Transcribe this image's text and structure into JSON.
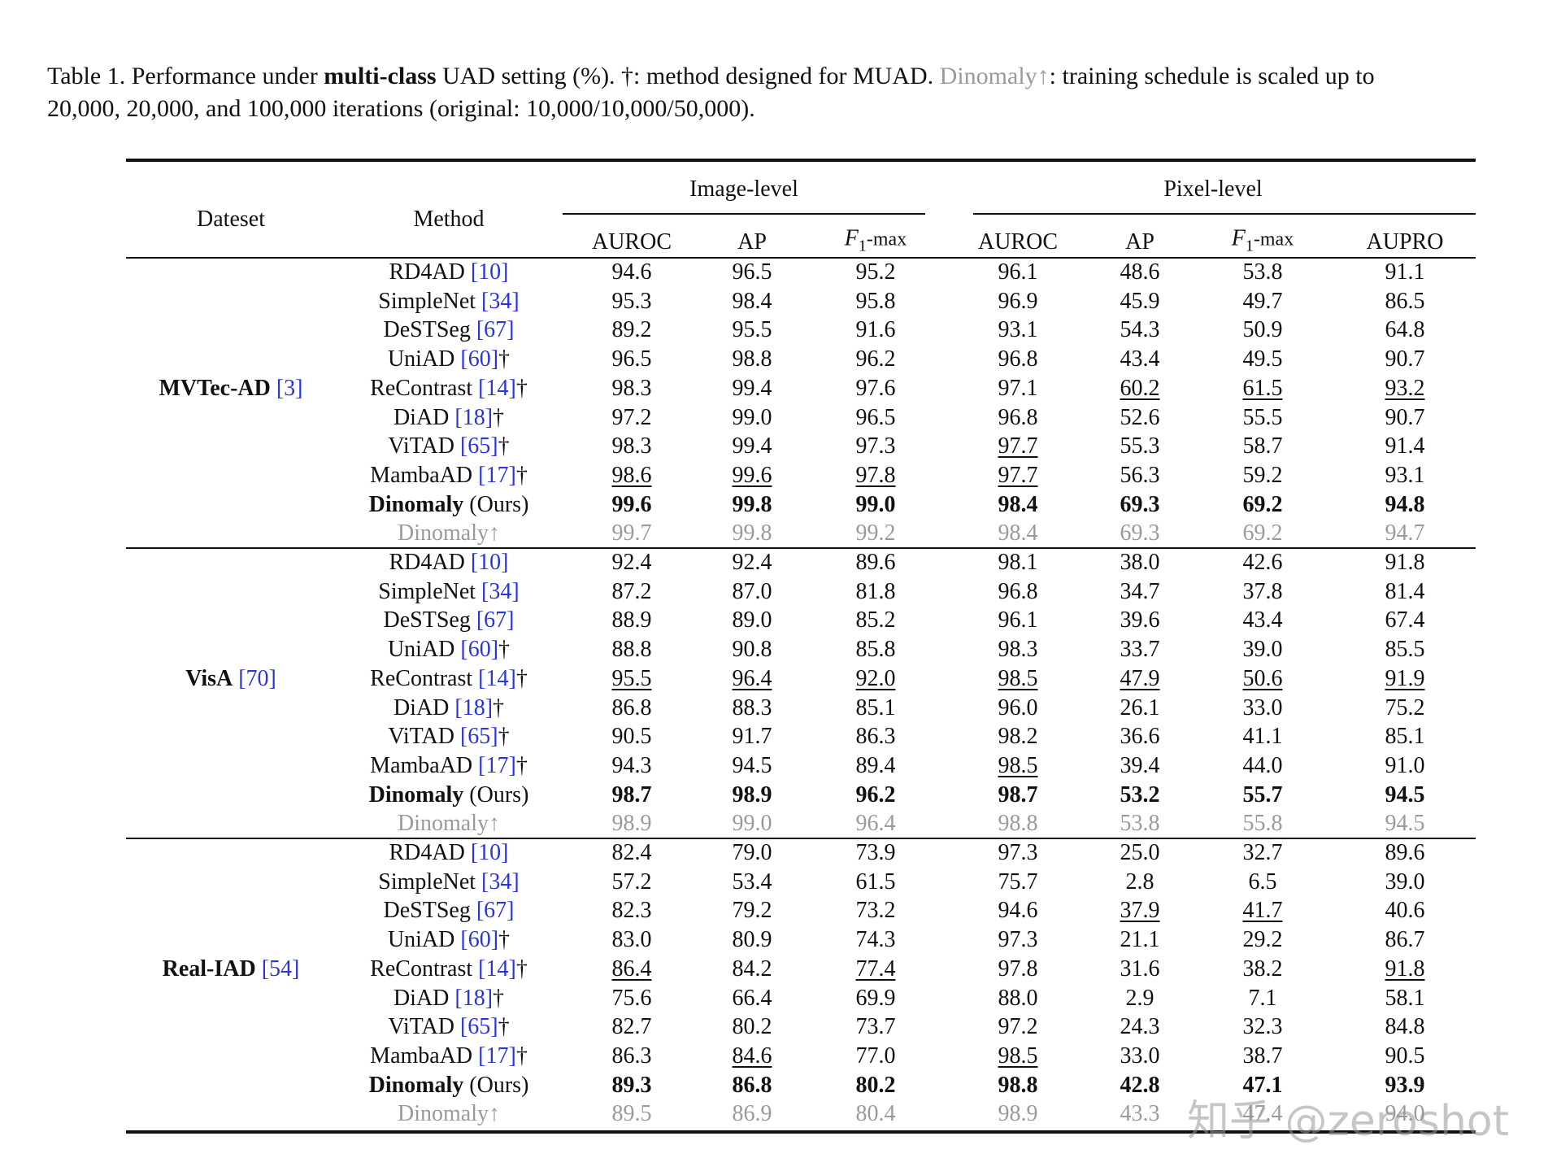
{
  "caption": {
    "lines": [
      [
        {
          "text": "Table 1. Performance under "
        },
        {
          "text": "multi-class",
          "style": "bold"
        },
        {
          "text": " UAD setting (%). †: method designed for MUAD. "
        },
        {
          "text": "Dinomaly↑",
          "style": "gray"
        },
        {
          "text": ": training schedule is scaled up to"
        }
      ],
      [
        {
          "text": "20,000, 20,000, and 100,000 iterations (original: 10,000/10,000/50,000)."
        }
      ]
    ]
  },
  "table": {
    "headers": {
      "dataset": "Dateset",
      "method": "Method",
      "groups": [
        "Image-level",
        "Pixel-level"
      ],
      "columns": [
        {
          "label": "AUROC"
        },
        {
          "label": "AP"
        },
        {
          "label": "F",
          "sub": "1",
          "suffix": "-max"
        },
        {
          "label": "AUROC"
        },
        {
          "label": "AP"
        },
        {
          "label": "F",
          "sub": "1",
          "suffix": "-max"
        },
        {
          "label": "AUPRO"
        }
      ]
    },
    "blocks": [
      {
        "dataset": "MVTec-AD",
        "ref": "[3]",
        "rows": [
          {
            "name": "RD4AD",
            "ref": "[10]",
            "values": [
              "94.6",
              "96.5",
              "95.2",
              "96.1",
              "48.6",
              "53.8",
              "91.1"
            ]
          },
          {
            "name": "SimpleNet",
            "ref": "[34]",
            "values": [
              "95.3",
              "98.4",
              "95.8",
              "96.9",
              "45.9",
              "49.7",
              "86.5"
            ]
          },
          {
            "name": "DeSTSeg",
            "ref": "[67]",
            "values": [
              "89.2",
              "95.5",
              "91.6",
              "93.1",
              "54.3",
              "50.9",
              "64.8"
            ]
          },
          {
            "name": "UniAD",
            "ref": "[60]",
            "mark": "†",
            "values": [
              "96.5",
              "98.8",
              "96.2",
              "96.8",
              "43.4",
              "49.5",
              "90.7"
            ]
          },
          {
            "name": "ReContrast",
            "ref": "[14]",
            "mark": "†",
            "values": [
              "98.3",
              "99.4",
              "97.6",
              "97.1",
              "60.2",
              "61.5",
              "93.2"
            ],
            "underline": [
              4,
              5,
              6
            ]
          },
          {
            "name": "DiAD",
            "ref": "[18]",
            "mark": "†",
            "values": [
              "97.2",
              "99.0",
              "96.5",
              "96.8",
              "52.6",
              "55.5",
              "90.7"
            ]
          },
          {
            "name": "ViTAD",
            "ref": "[65]",
            "mark": "†",
            "values": [
              "98.3",
              "99.4",
              "97.3",
              "97.7",
              "55.3",
              "58.7",
              "91.4"
            ],
            "underline": [
              3
            ]
          },
          {
            "name": "MambaAD",
            "ref": "[17]",
            "mark": "†",
            "values": [
              "98.6",
              "99.6",
              "97.8",
              "97.7",
              "56.3",
              "59.2",
              "93.1"
            ],
            "underline": [
              0,
              1,
              2,
              3
            ]
          },
          {
            "name": "Dinomaly",
            "note": "(Ours)",
            "style": "bold",
            "values": [
              "99.6",
              "99.8",
              "99.0",
              "98.4",
              "69.3",
              "69.2",
              "94.8"
            ]
          },
          {
            "name": "Dinomaly↑",
            "style": "gray",
            "values": [
              "99.7",
              "99.8",
              "99.2",
              "98.4",
              "69.3",
              "69.2",
              "94.7"
            ]
          }
        ]
      },
      {
        "dataset": "VisA",
        "ref": "[70]",
        "rows": [
          {
            "name": "RD4AD",
            "ref": "[10]",
            "values": [
              "92.4",
              "92.4",
              "89.6",
              "98.1",
              "38.0",
              "42.6",
              "91.8"
            ]
          },
          {
            "name": "SimpleNet",
            "ref": "[34]",
            "values": [
              "87.2",
              "87.0",
              "81.8",
              "96.8",
              "34.7",
              "37.8",
              "81.4"
            ]
          },
          {
            "name": "DeSTSeg",
            "ref": "[67]",
            "values": [
              "88.9",
              "89.0",
              "85.2",
              "96.1",
              "39.6",
              "43.4",
              "67.4"
            ]
          },
          {
            "name": "UniAD",
            "ref": "[60]",
            "mark": "†",
            "values": [
              "88.8",
              "90.8",
              "85.8",
              "98.3",
              "33.7",
              "39.0",
              "85.5"
            ]
          },
          {
            "name": "ReContrast",
            "ref": "[14]",
            "mark": "†",
            "values": [
              "95.5",
              "96.4",
              "92.0",
              "98.5",
              "47.9",
              "50.6",
              "91.9"
            ],
            "underline": [
              0,
              1,
              2,
              3,
              4,
              5,
              6
            ]
          },
          {
            "name": "DiAD",
            "ref": "[18]",
            "mark": "†",
            "values": [
              "86.8",
              "88.3",
              "85.1",
              "96.0",
              "26.1",
              "33.0",
              "75.2"
            ]
          },
          {
            "name": "ViTAD",
            "ref": "[65]",
            "mark": "†",
            "values": [
              "90.5",
              "91.7",
              "86.3",
              "98.2",
              "36.6",
              "41.1",
              "85.1"
            ]
          },
          {
            "name": "MambaAD",
            "ref": "[17]",
            "mark": "†",
            "values": [
              "94.3",
              "94.5",
              "89.4",
              "98.5",
              "39.4",
              "44.0",
              "91.0"
            ],
            "underline": [
              3
            ]
          },
          {
            "name": "Dinomaly",
            "note": "(Ours)",
            "style": "bold",
            "values": [
              "98.7",
              "98.9",
              "96.2",
              "98.7",
              "53.2",
              "55.7",
              "94.5"
            ]
          },
          {
            "name": "Dinomaly↑",
            "style": "gray",
            "values": [
              "98.9",
              "99.0",
              "96.4",
              "98.8",
              "53.8",
              "55.8",
              "94.5"
            ]
          }
        ]
      },
      {
        "dataset": "Real-IAD",
        "ref": "[54]",
        "rows": [
          {
            "name": "RD4AD",
            "ref": "[10]",
            "values": [
              "82.4",
              "79.0",
              "73.9",
              "97.3",
              "25.0",
              "32.7",
              "89.6"
            ]
          },
          {
            "name": "SimpleNet",
            "ref": "[34]",
            "values": [
              "57.2",
              "53.4",
              "61.5",
              "75.7",
              "2.8",
              "6.5",
              "39.0"
            ]
          },
          {
            "name": "DeSTSeg",
            "ref": "[67]",
            "values": [
              "82.3",
              "79.2",
              "73.2",
              "94.6",
              "37.9",
              "41.7",
              "40.6"
            ],
            "underline": [
              4,
              5
            ]
          },
          {
            "name": "UniAD",
            "ref": "[60]",
            "mark": "†",
            "values": [
              "83.0",
              "80.9",
              "74.3",
              "97.3",
              "21.1",
              "29.2",
              "86.7"
            ]
          },
          {
            "name": "ReContrast",
            "ref": "[14]",
            "mark": "†",
            "values": [
              "86.4",
              "84.2",
              "77.4",
              "97.8",
              "31.6",
              "38.2",
              "91.8"
            ],
            "underline": [
              0,
              2,
              6
            ]
          },
          {
            "name": "DiAD",
            "ref": "[18]",
            "mark": "†",
            "values": [
              "75.6",
              "66.4",
              "69.9",
              "88.0",
              "2.9",
              "7.1",
              "58.1"
            ]
          },
          {
            "name": "ViTAD",
            "ref": "[65]",
            "mark": "†",
            "values": [
              "82.7",
              "80.2",
              "73.7",
              "97.2",
              "24.3",
              "32.3",
              "84.8"
            ]
          },
          {
            "name": "MambaAD",
            "ref": "[17]",
            "mark": "†",
            "values": [
              "86.3",
              "84.6",
              "77.0",
              "98.5",
              "33.0",
              "38.7",
              "90.5"
            ],
            "underline": [
              1,
              3
            ]
          },
          {
            "name": "Dinomaly",
            "note": "(Ours)",
            "style": "bold",
            "values": [
              "89.3",
              "86.8",
              "80.2",
              "98.8",
              "42.8",
              "47.1",
              "93.9"
            ]
          },
          {
            "name": "Dinomaly↑",
            "style": "gray",
            "values": [
              "89.5",
              "86.9",
              "80.4",
              "98.9",
              "43.3",
              "47.4",
              "94.0"
            ]
          }
        ]
      }
    ]
  },
  "watermark": "知乎 @zeroshot"
}
